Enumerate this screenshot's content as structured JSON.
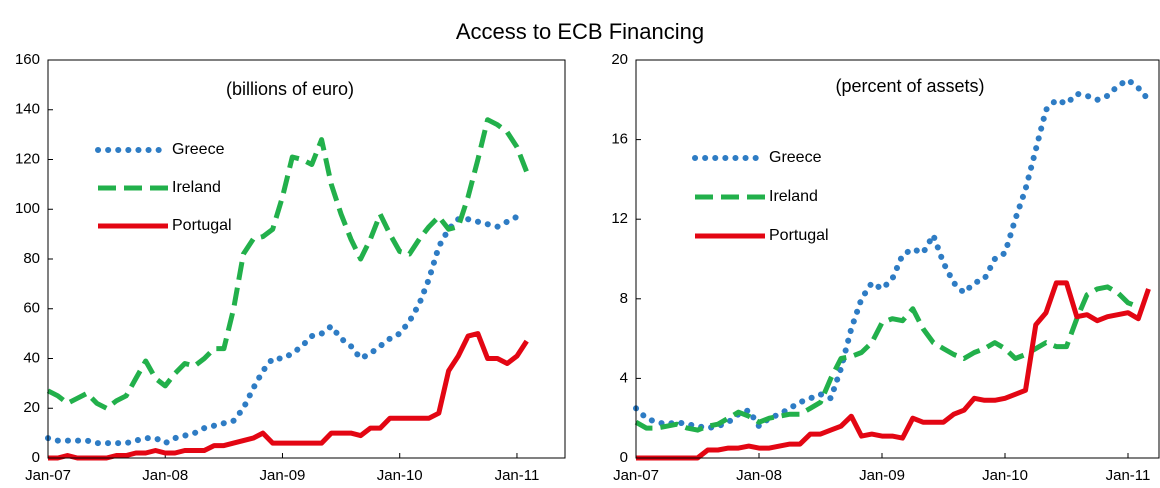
{
  "title": "Access to ECB Financing",
  "chart_data": [
    {
      "type": "line",
      "subtitle": "(billions of euro)",
      "legend": "upper left",
      "categories": [
        "Jan-07",
        null,
        null,
        null,
        null,
        null,
        null,
        null,
        null,
        null,
        null,
        null,
        "Jan-08",
        null,
        null,
        null,
        null,
        null,
        null,
        null,
        null,
        null,
        null,
        null,
        "Jan-09",
        null,
        null,
        null,
        null,
        null,
        null,
        null,
        null,
        null,
        null,
        null,
        "Jan-10",
        null,
        null,
        null,
        null,
        null,
        null,
        null,
        null,
        null,
        null,
        null,
        "Jan-11",
        null
      ],
      "ylim": [
        0,
        160
      ],
      "yticks": [
        0,
        20,
        40,
        60,
        80,
        100,
        120,
        140,
        160
      ],
      "series": [
        {
          "name": "Greece",
          "color": "#2e7cc4",
          "style": "dotted",
          "values": [
            8,
            7,
            7,
            7,
            7,
            6,
            6,
            6,
            6,
            7,
            8,
            8,
            6,
            8,
            9,
            10,
            12,
            13,
            14,
            15,
            20,
            28,
            35,
            40,
            40,
            42,
            45,
            49,
            50,
            53,
            48,
            45,
            40,
            42,
            45,
            48,
            50,
            55,
            62,
            72,
            85,
            92,
            96,
            96,
            95,
            94,
            93,
            95,
            97,
            null
          ]
        },
        {
          "name": "Ireland",
          "color": "#22b04b",
          "style": "dashed",
          "values": [
            27,
            25,
            22,
            24,
            26,
            22,
            20,
            23,
            25,
            32,
            39,
            32,
            29,
            34,
            38,
            37,
            40,
            44,
            44,
            60,
            82,
            88,
            89,
            92,
            105,
            121,
            120,
            118,
            128,
            110,
            98,
            88,
            80,
            88,
            98,
            90,
            83,
            82,
            88,
            93,
            97,
            92,
            93,
            105,
            120,
            136,
            134,
            131,
            125,
            115
          ]
        },
        {
          "name": "Portugal",
          "color": "#e30613",
          "style": "solid",
          "values": [
            0,
            0,
            1,
            0,
            0,
            0,
            0,
            1,
            1,
            2,
            2,
            3,
            2,
            2,
            3,
            3,
            3,
            5,
            5,
            6,
            7,
            8,
            10,
            6,
            6,
            6,
            6,
            6,
            6,
            10,
            10,
            10,
            9,
            12,
            12,
            16,
            16,
            16,
            16,
            16,
            18,
            35,
            41,
            49,
            50,
            40,
            40,
            38,
            41,
            47
          ]
        }
      ]
    },
    {
      "type": "line",
      "subtitle": "(percent of assets)",
      "legend": "upper left",
      "categories": [
        "Jan-07",
        null,
        null,
        null,
        null,
        null,
        null,
        null,
        null,
        null,
        null,
        null,
        "Jan-08",
        null,
        null,
        null,
        null,
        null,
        null,
        null,
        null,
        null,
        null,
        null,
        "Jan-09",
        null,
        null,
        null,
        null,
        null,
        null,
        null,
        null,
        null,
        null,
        null,
        "Jan-10",
        null,
        null,
        null,
        null,
        null,
        null,
        null,
        null,
        null,
        null,
        null,
        "Jan-11",
        null,
        null
      ],
      "ylim": [
        0,
        20
      ],
      "yticks": [
        0,
        4,
        8,
        12,
        16,
        20
      ],
      "series": [
        {
          "name": "Greece",
          "color": "#2e7cc4",
          "style": "dotted",
          "values": [
            2.5,
            2.0,
            1.8,
            1.7,
            1.8,
            1.7,
            1.6,
            1.5,
            1.6,
            1.8,
            2.2,
            2.4,
            1.6,
            2.0,
            2.2,
            2.5,
            2.8,
            3.0,
            3.2,
            3.0,
            4.5,
            6.5,
            8.0,
            8.8,
            8.5,
            9.0,
            10.2,
            10.5,
            10.3,
            11.2,
            9.8,
            8.8,
            8.3,
            8.8,
            9.0,
            10.0,
            10.3,
            12.0,
            13.5,
            15.5,
            17.5,
            18.0,
            17.8,
            18.3,
            18.2,
            18.0,
            18.2,
            18.7,
            19.0,
            18.6,
            18.0
          ]
        },
        {
          "name": "Ireland",
          "color": "#22b04b",
          "style": "dashed",
          "values": [
            1.8,
            1.5,
            1.5,
            1.6,
            1.7,
            1.5,
            1.4,
            1.6,
            1.7,
            2.0,
            2.3,
            2.1,
            1.8,
            2.0,
            2.1,
            2.2,
            2.2,
            2.5,
            2.8,
            4.0,
            5.0,
            5.1,
            5.3,
            5.8,
            6.8,
            7.0,
            6.9,
            7.5,
            6.5,
            5.8,
            5.5,
            5.2,
            5.0,
            5.3,
            5.5,
            5.8,
            5.5,
            5.0,
            5.2,
            5.5,
            5.8,
            5.6,
            5.6,
            7.0,
            8.2,
            8.5,
            8.6,
            8.3,
            7.8,
            7.6,
            null
          ]
        },
        {
          "name": "Portugal",
          "color": "#e30613",
          "style": "solid",
          "values": [
            0,
            0,
            0,
            0,
            0,
            0,
            0,
            0.4,
            0.4,
            0.5,
            0.5,
            0.6,
            0.5,
            0.5,
            0.6,
            0.7,
            0.7,
            1.2,
            1.2,
            1.4,
            1.6,
            2.1,
            1.1,
            1.2,
            1.1,
            1.1,
            1.0,
            2.0,
            1.8,
            1.8,
            1.8,
            2.2,
            2.4,
            3.0,
            2.9,
            2.9,
            3.0,
            3.2,
            3.4,
            6.7,
            7.3,
            8.8,
            8.8,
            7.1,
            7.2,
            6.9,
            7.1,
            7.2,
            7.3,
            7.0,
            8.5
          ]
        }
      ]
    }
  ]
}
